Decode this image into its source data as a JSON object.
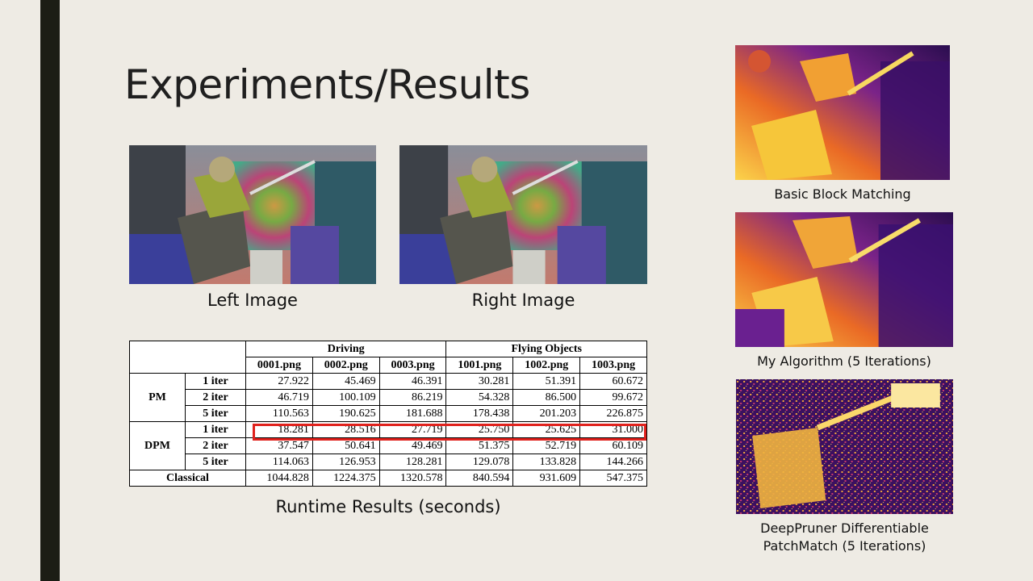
{
  "slide": {
    "title": "Experiments/Results",
    "captions": {
      "left_image": "Left Image",
      "right_image": "Right Image",
      "basic": "Basic Block Matching",
      "mine": "My Algorithm (5 Iterations)",
      "deeppruner_line1": "DeepPruner Differentiable",
      "deeppruner_line2": "PatchMatch (5 Iterations)",
      "table": "Runtime Results (seconds)"
    }
  },
  "table": {
    "groups": [
      "Driving",
      "Flying Objects"
    ],
    "files": [
      "0001.png",
      "0002.png",
      "0003.png",
      "1001.png",
      "1002.png",
      "1003.png"
    ],
    "rows": {
      "pm_label": "PM",
      "dpm_label": "DPM",
      "classical_label": "Classical",
      "iter1": "1 iter",
      "iter2": "2 iter",
      "iter5": "5 iter",
      "pm1": [
        "27.922",
        "45.469",
        "46.391",
        "30.281",
        "51.391",
        "60.672"
      ],
      "pm2": [
        "46.719",
        "100.109",
        "86.219",
        "54.328",
        "86.500",
        "99.672"
      ],
      "pm5": [
        "110.563",
        "190.625",
        "181.688",
        "178.438",
        "201.203",
        "226.875"
      ],
      "dpm1": [
        "18.281",
        "28.516",
        "27.719",
        "25.750",
        "25.625",
        "31.000"
      ],
      "dpm2": [
        "37.547",
        "50.641",
        "49.469",
        "51.375",
        "52.719",
        "60.109"
      ],
      "dpm5": [
        "114.063",
        "126.953",
        "128.281",
        "129.078",
        "133.828",
        "144.266"
      ],
      "classical": [
        "1044.828",
        "1224.375",
        "1320.578",
        "840.594",
        "931.609",
        "547.375"
      ]
    }
  }
}
